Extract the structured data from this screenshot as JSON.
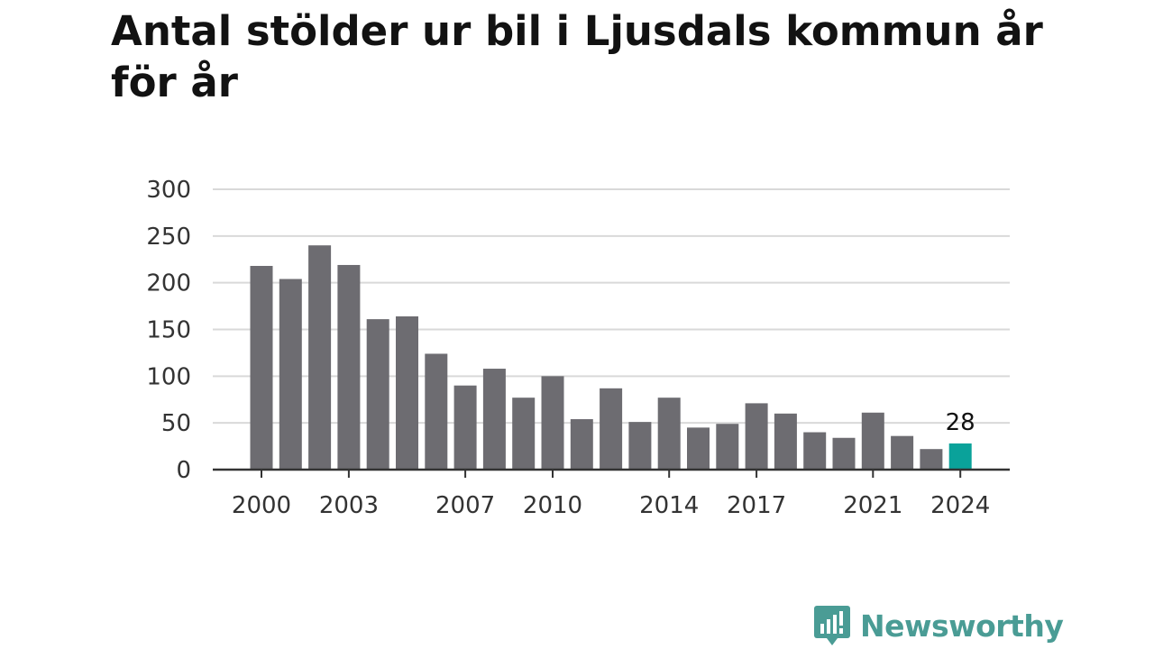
{
  "title": "Antal stölder ur bil i Ljusdals kommun år för år",
  "brand": {
    "name": "Newsworthy",
    "color": "#4a9c95",
    "icon": "newsworthy-logo-icon"
  },
  "colors": {
    "bar": "#6d6c71",
    "highlight": "#0aa29a",
    "grid": "#d9d9d9",
    "axis": "#333333"
  },
  "chart_data": {
    "type": "bar",
    "categories": [
      "2000",
      "2001",
      "2002",
      "2003",
      "2004",
      "2005",
      "2006",
      "2007",
      "2008",
      "2009",
      "2010",
      "2011",
      "2012",
      "2013",
      "2014",
      "2015",
      "2016",
      "2017",
      "2018",
      "2019",
      "2020",
      "2021",
      "2022",
      "2023",
      "2024"
    ],
    "values": [
      218,
      204,
      240,
      219,
      161,
      164,
      124,
      90,
      108,
      77,
      100,
      54,
      87,
      51,
      77,
      45,
      49,
      71,
      60,
      40,
      34,
      61,
      36,
      22,
      28
    ],
    "x_tick_labels": [
      "2000",
      "2003",
      "2007",
      "2010",
      "2014",
      "2017",
      "2021",
      "2024"
    ],
    "y_ticks": [
      0,
      50,
      100,
      150,
      200,
      250,
      300
    ],
    "ylim": [
      0,
      300
    ],
    "highlight": {
      "category": "2024",
      "label": "28"
    },
    "grid": true,
    "xlabel": "",
    "ylabel": ""
  }
}
